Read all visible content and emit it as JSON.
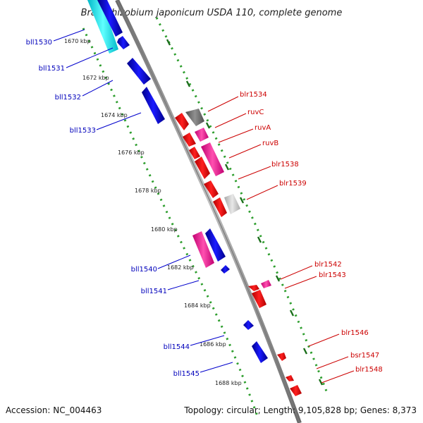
{
  "title": "Bradyrhizobium japonicum USDA 110, complete genome",
  "footer": {
    "accession": "Accession: NC_004463",
    "summary": "Topology: circular; Length: 9,105,828 bp; Genes: 8,373"
  },
  "colors": {
    "minus_strand_label": "#0000bb",
    "plus_strand_label": "#cc0000",
    "tick_major": "#1a6e1a",
    "tick_minor": "#33aa33",
    "backbone": "#888888"
  },
  "scale_ticks": [
    "1670 kbp",
    "1672 kbp",
    "1674 kbp",
    "1676 kbp",
    "1678 kbp",
    "1680 kbp",
    "1682 kbp",
    "1684 kbp",
    "1686 kbp",
    "1688 kbp"
  ],
  "minus_strand_genes": [
    "bll1530",
    "bll1531",
    "bll1532",
    "bll1533",
    "bll1540",
    "bll1541",
    "bll1544",
    "bll1545"
  ],
  "plus_strand_genes": [
    "blr1534",
    "ruvC",
    "ruvA",
    "ruvB",
    "blr1538",
    "blr1539",
    "blr1542",
    "blr1543",
    "blr1546",
    "bsr1547",
    "blr1548"
  ]
}
